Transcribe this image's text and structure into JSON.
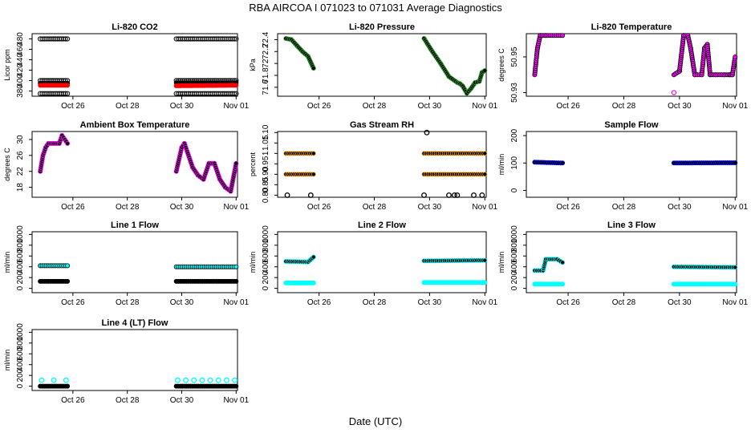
{
  "figure": {
    "title": "RBA   AIRCOA I   071023 to 071031   Average Diagnostics",
    "xlabel": "Date (UTC)"
  },
  "chart_data": [
    {
      "id": "co2",
      "type": "scatter",
      "title": "Li-820 CO2",
      "ylabel": "Licor ppm",
      "x_ticks": [
        "Oct 26",
        "Oct 28",
        "Oct 30",
        "Nov 01"
      ],
      "xlim": [
        24.5,
        32.05
      ],
      "ylim": [
        370,
        490
      ],
      "y_ticks": [
        380,
        400,
        420,
        440,
        460,
        480
      ],
      "series": [
        {
          "name": "level 480",
          "color": "#000000",
          "marker": "open",
          "segments": [
            {
              "x": [
                24.8,
                25.8
              ],
              "y": [
                480,
                480
              ]
            },
            {
              "x": [
                29.8,
                32.0
              ],
              "y": [
                480,
                480
              ]
            }
          ]
        },
        {
          "name": "level 400",
          "color": "#000000",
          "marker": "open",
          "segments": [
            {
              "x": [
                24.8,
                25.8
              ],
              "y": [
                400,
                400
              ]
            },
            {
              "x": [
                29.8,
                32.0
              ],
              "y": [
                400,
                400
              ]
            }
          ]
        },
        {
          "name": "level 395",
          "color": "#000000",
          "marker": "filled",
          "segments": [
            {
              "x": [
                24.8,
                25.8
              ],
              "y": [
                395,
                395
              ]
            },
            {
              "x": [
                29.8,
                32.0
              ],
              "y": [
                396,
                396
              ]
            }
          ]
        },
        {
          "name": "sample",
          "color": "#ff0000",
          "marker": "filled",
          "segments": [
            {
              "x": [
                24.8,
                25.8
              ],
              "y": [
                391,
                391
              ]
            },
            {
              "x": [
                29.8,
                32.0
              ],
              "y": [
                390,
                391
              ]
            }
          ]
        },
        {
          "name": "level 375",
          "color": "#000000",
          "marker": "open",
          "segments": [
            {
              "x": [
                24.8,
                25.8
              ],
              "y": [
                375,
                375
              ]
            },
            {
              "x": [
                29.8,
                32.0
              ],
              "y": [
                375,
                375
              ]
            }
          ]
        }
      ]
    },
    {
      "id": "pressure",
      "type": "line",
      "title": "Li-820 Pressure",
      "ylabel": "kPa",
      "x_ticks": [
        "Oct 26",
        "Oct 28",
        "Oct 30",
        "Nov 01"
      ],
      "xlim": [
        24.5,
        32.05
      ],
      "ylim": [
        71.45,
        72.5
      ],
      "y_ticks": [
        71.6,
        71.8,
        72.0,
        72.2,
        72.4
      ],
      "series": [
        {
          "name": "pressure",
          "color": "#000000",
          "outline": "#2ca02c",
          "segments": [
            {
              "x": [
                24.8,
                25.0,
                25.2,
                25.4,
                25.6,
                25.8
              ],
              "y": [
                72.42,
                72.4,
                72.3,
                72.2,
                72.12,
                71.92
              ]
            },
            {
              "x": [
                29.8,
                30.1,
                30.4,
                30.7,
                31.0,
                31.1,
                31.2,
                31.35,
                31.5,
                31.65,
                31.8,
                31.9,
                32.0
              ],
              "y": [
                72.42,
                72.2,
                72.0,
                71.78,
                71.68,
                71.66,
                71.62,
                71.5,
                71.58,
                71.68,
                71.7,
                71.85,
                71.88
              ]
            }
          ]
        }
      ]
    },
    {
      "id": "temperature",
      "type": "line",
      "title": "Li-820 Temperature",
      "ylabel": "degrees C",
      "x_ticks": [
        "Oct 26",
        "Oct 28",
        "Oct 30",
        "Nov 01"
      ],
      "xlim": [
        24.5,
        32.05
      ],
      "ylim": [
        50.928,
        50.963
      ],
      "y_ticks": [
        50.93,
        50.95
      ],
      "series": [
        {
          "name": "temperature",
          "color": "#ff00ff",
          "outline": "#000000",
          "segments": [
            {
              "x": [
                24.8,
                24.9,
                25.0,
                25.2,
                25.8
              ],
              "y": [
                50.94,
                50.955,
                50.962,
                50.962,
                50.962
              ]
            },
            {
              "x": [
                29.8,
                30.0,
                30.15,
                30.3,
                30.4,
                30.55,
                30.8,
                30.9,
                31.0,
                31.1,
                31.3,
                31.6,
                31.8,
                31.9,
                32.0
              ],
              "y": [
                50.94,
                50.942,
                50.962,
                50.962,
                50.955,
                50.94,
                50.94,
                50.955,
                50.957,
                50.94,
                50.94,
                50.94,
                50.94,
                50.94,
                50.95
              ]
            }
          ]
        }
      ],
      "outliers": [
        {
          "x": 29.8,
          "y": 50.93,
          "color": "#ff00ff"
        }
      ]
    },
    {
      "id": "box_temp",
      "type": "line",
      "title": "Ambient Box Temperature",
      "ylabel": "degrees C",
      "x_ticks": [
        "Oct 26",
        "Oct 28",
        "Oct 30",
        "Nov 01"
      ],
      "xlim": [
        24.5,
        32.05
      ],
      "ylim": [
        15.5,
        32
      ],
      "y_ticks": [
        18,
        22,
        26,
        30
      ],
      "series": [
        {
          "name": "box temperature",
          "color": "#000000",
          "outline": "#ff00ff",
          "segments": [
            {
              "x": [
                24.8,
                24.9,
                25.0,
                25.1,
                25.3,
                25.5,
                25.6,
                25.7,
                25.8
              ],
              "y": [
                22,
                26,
                28,
                29,
                29,
                29,
                31,
                30,
                29
              ]
            },
            {
              "x": [
                29.8,
                30.0,
                30.1,
                30.2,
                30.4,
                30.6,
                30.8,
                31.0,
                31.2,
                31.4,
                31.6,
                31.8,
                32.0
              ],
              "y": [
                22,
                28,
                29,
                27,
                23,
                21,
                20,
                24,
                24,
                20,
                18,
                17,
                24
              ]
            }
          ]
        }
      ]
    },
    {
      "id": "rh",
      "type": "scatter",
      "title": "Gas Stream RH",
      "ylabel": "percent",
      "x_ticks": [
        "Oct 26",
        "Oct 28",
        "Oct 30",
        "Nov 01"
      ],
      "xlim": [
        24.5,
        32.05
      ],
      "ylim": [
        0.79,
        1.105
      ],
      "y_ticks": [
        0.8,
        0.85,
        0.9,
        0.95,
        1.0,
        1.05,
        1.1
      ],
      "series": [
        {
          "name": "rh",
          "color": "#000000",
          "outline": "#ffa500",
          "segments": [
            {
              "x": [
                24.8,
                25.8
              ],
              "y": [
                1.0,
                1.0
              ]
            },
            {
              "x": [
                24.8,
                25.8
              ],
              "y": [
                0.9,
                0.9
              ]
            },
            {
              "x": [
                29.8,
                32.0
              ],
              "y": [
                1.0,
                1.0
              ]
            },
            {
              "x": [
                29.8,
                32.0
              ],
              "y": [
                0.9,
                0.9
              ]
            }
          ]
        }
      ],
      "scatter_points": [
        {
          "x": 24.85,
          "y": 0.8
        },
        {
          "x": 25.7,
          "y": 0.8
        },
        {
          "x": 29.9,
          "y": 1.1
        },
        {
          "x": 29.8,
          "y": 0.8
        },
        {
          "x": 30.7,
          "y": 0.8
        },
        {
          "x": 31.0,
          "y": 0.8
        },
        {
          "x": 31.6,
          "y": 0.8
        },
        {
          "x": 31.9,
          "y": 0.8
        },
        {
          "x": 30.9,
          "y": 0.8
        }
      ]
    },
    {
      "id": "sample_flow",
      "type": "scatter",
      "title": "Sample Flow",
      "ylabel": "ml/min",
      "x_ticks": [
        "Oct 26",
        "Oct 28",
        "Oct 30",
        "Nov 01"
      ],
      "xlim": [
        24.5,
        32.05
      ],
      "ylim": [
        -25,
        215
      ],
      "y_ticks": [
        0,
        100,
        200
      ],
      "series": [
        {
          "name": "sample flow",
          "color": "#000000",
          "outline": "#0000ff",
          "segments": [
            {
              "x": [
                24.8,
                25.8
              ],
              "y": [
                103,
                100
              ]
            },
            {
              "x": [
                29.8,
                32.0
              ],
              "y": [
                100,
                101
              ]
            }
          ]
        }
      ]
    },
    {
      "id": "line1",
      "type": "scatter",
      "title": "Line 1 Flow",
      "ylabel": "ml/min",
      "x_ticks": [
        "Oct 26",
        "Oct 28",
        "Oct 30",
        "Nov 01"
      ],
      "xlim": [
        24.5,
        32.05
      ],
      "ylim": [
        -80,
        1050
      ],
      "y_ticks": [
        0,
        200,
        400,
        600,
        800,
        1000
      ],
      "series": [
        {
          "name": "high",
          "color": "#00ffff",
          "outline": "#000000",
          "segments": [
            {
              "x": [
                24.8,
                25.8
              ],
              "y": [
                420,
                420
              ]
            },
            {
              "x": [
                29.8,
                32.0
              ],
              "y": [
                400,
                400
              ]
            }
          ]
        },
        {
          "name": "low",
          "color": "#000000",
          "outline": "#000000",
          "segments": [
            {
              "x": [
                24.8,
                25.8
              ],
              "y": [
                130,
                130
              ]
            },
            {
              "x": [
                29.8,
                32.0
              ],
              "y": [
                130,
                130
              ]
            }
          ]
        }
      ]
    },
    {
      "id": "line2",
      "type": "scatter",
      "title": "Line 2 Flow",
      "ylabel": "ml/min",
      "x_ticks": [
        "Oct 26",
        "Oct 28",
        "Oct 30",
        "Nov 01"
      ],
      "xlim": [
        24.5,
        32.05
      ],
      "ylim": [
        -80,
        1050
      ],
      "y_ticks": [
        0,
        200,
        400,
        600,
        800,
        1000
      ],
      "series": [
        {
          "name": "high",
          "color": "#000000",
          "outline": "#00ffff",
          "segments": [
            {
              "x": [
                24.8,
                25.6,
                25.8
              ],
              "y": [
                500,
                490,
                580
              ]
            },
            {
              "x": [
                29.8,
                32.0
              ],
              "y": [
                510,
                520
              ]
            }
          ]
        },
        {
          "name": "low",
          "color": "#00ffff",
          "outline": "#00ffff",
          "segments": [
            {
              "x": [
                24.8,
                25.8
              ],
              "y": [
                100,
                100
              ]
            },
            {
              "x": [
                29.8,
                32.0
              ],
              "y": [
                110,
                110
              ]
            }
          ]
        }
      ]
    },
    {
      "id": "line3",
      "type": "scatter",
      "title": "Line 3 Flow",
      "ylabel": "ml/min",
      "x_ticks": [
        "Oct 26",
        "Oct 28",
        "Oct 30",
        "Nov 01"
      ],
      "xlim": [
        24.5,
        32.05
      ],
      "ylim": [
        -80,
        1050
      ],
      "y_ticks": [
        0,
        200,
        400,
        600,
        800,
        1000
      ],
      "series": [
        {
          "name": "high",
          "color": "#000000",
          "outline": "#00ffff",
          "segments": [
            {
              "x": [
                24.8,
                25.1,
                25.2,
                25.6,
                25.8
              ],
              "y": [
                330,
                330,
                540,
                540,
                480
              ]
            },
            {
              "x": [
                29.8,
                32.0
              ],
              "y": [
                400,
                390
              ]
            }
          ]
        },
        {
          "name": "low",
          "color": "#00ffff",
          "outline": "#00ffff",
          "segments": [
            {
              "x": [
                24.8,
                25.8
              ],
              "y": [
                80,
                80
              ]
            },
            {
              "x": [
                29.8,
                32.0
              ],
              "y": [
                80,
                80
              ]
            }
          ]
        }
      ]
    },
    {
      "id": "line4",
      "type": "scatter",
      "title": "Line 4 (LT) Flow",
      "ylabel": "ml/min",
      "x_ticks": [
        "Oct 26",
        "Oct 28",
        "Oct 30",
        "Nov 01"
      ],
      "xlim": [
        24.5,
        32.05
      ],
      "ylim": [
        -80,
        1050
      ],
      "y_ticks": [
        0,
        200,
        400,
        600,
        800,
        1000
      ],
      "series": [
        {
          "name": "baseline",
          "color": "#000000",
          "outline": "#000000",
          "segments": [
            {
              "x": [
                24.8,
                25.8
              ],
              "y": [
                0,
                0
              ]
            },
            {
              "x": [
                29.8,
                32.0
              ],
              "y": [
                0,
                0
              ]
            }
          ]
        }
      ],
      "scatter_points": [
        {
          "x": 24.85,
          "y": 110,
          "color": "#00ffff",
          "open": true
        },
        {
          "x": 25.3,
          "y": 110,
          "color": "#00ffff",
          "open": true
        },
        {
          "x": 25.75,
          "y": 110,
          "color": "#00ffff",
          "open": true
        },
        {
          "x": 29.85,
          "y": 110,
          "color": "#00ffff",
          "open": true
        },
        {
          "x": 30.15,
          "y": 110,
          "color": "#00ffff",
          "open": true
        },
        {
          "x": 30.45,
          "y": 110,
          "color": "#00ffff",
          "open": true
        },
        {
          "x": 30.75,
          "y": 110,
          "color": "#00ffff",
          "open": true
        },
        {
          "x": 31.05,
          "y": 110,
          "color": "#00ffff",
          "open": true
        },
        {
          "x": 31.35,
          "y": 110,
          "color": "#00ffff",
          "open": true
        },
        {
          "x": 31.65,
          "y": 110,
          "color": "#00ffff",
          "open": true
        },
        {
          "x": 31.95,
          "y": 110,
          "color": "#00ffff",
          "open": true
        }
      ]
    }
  ]
}
